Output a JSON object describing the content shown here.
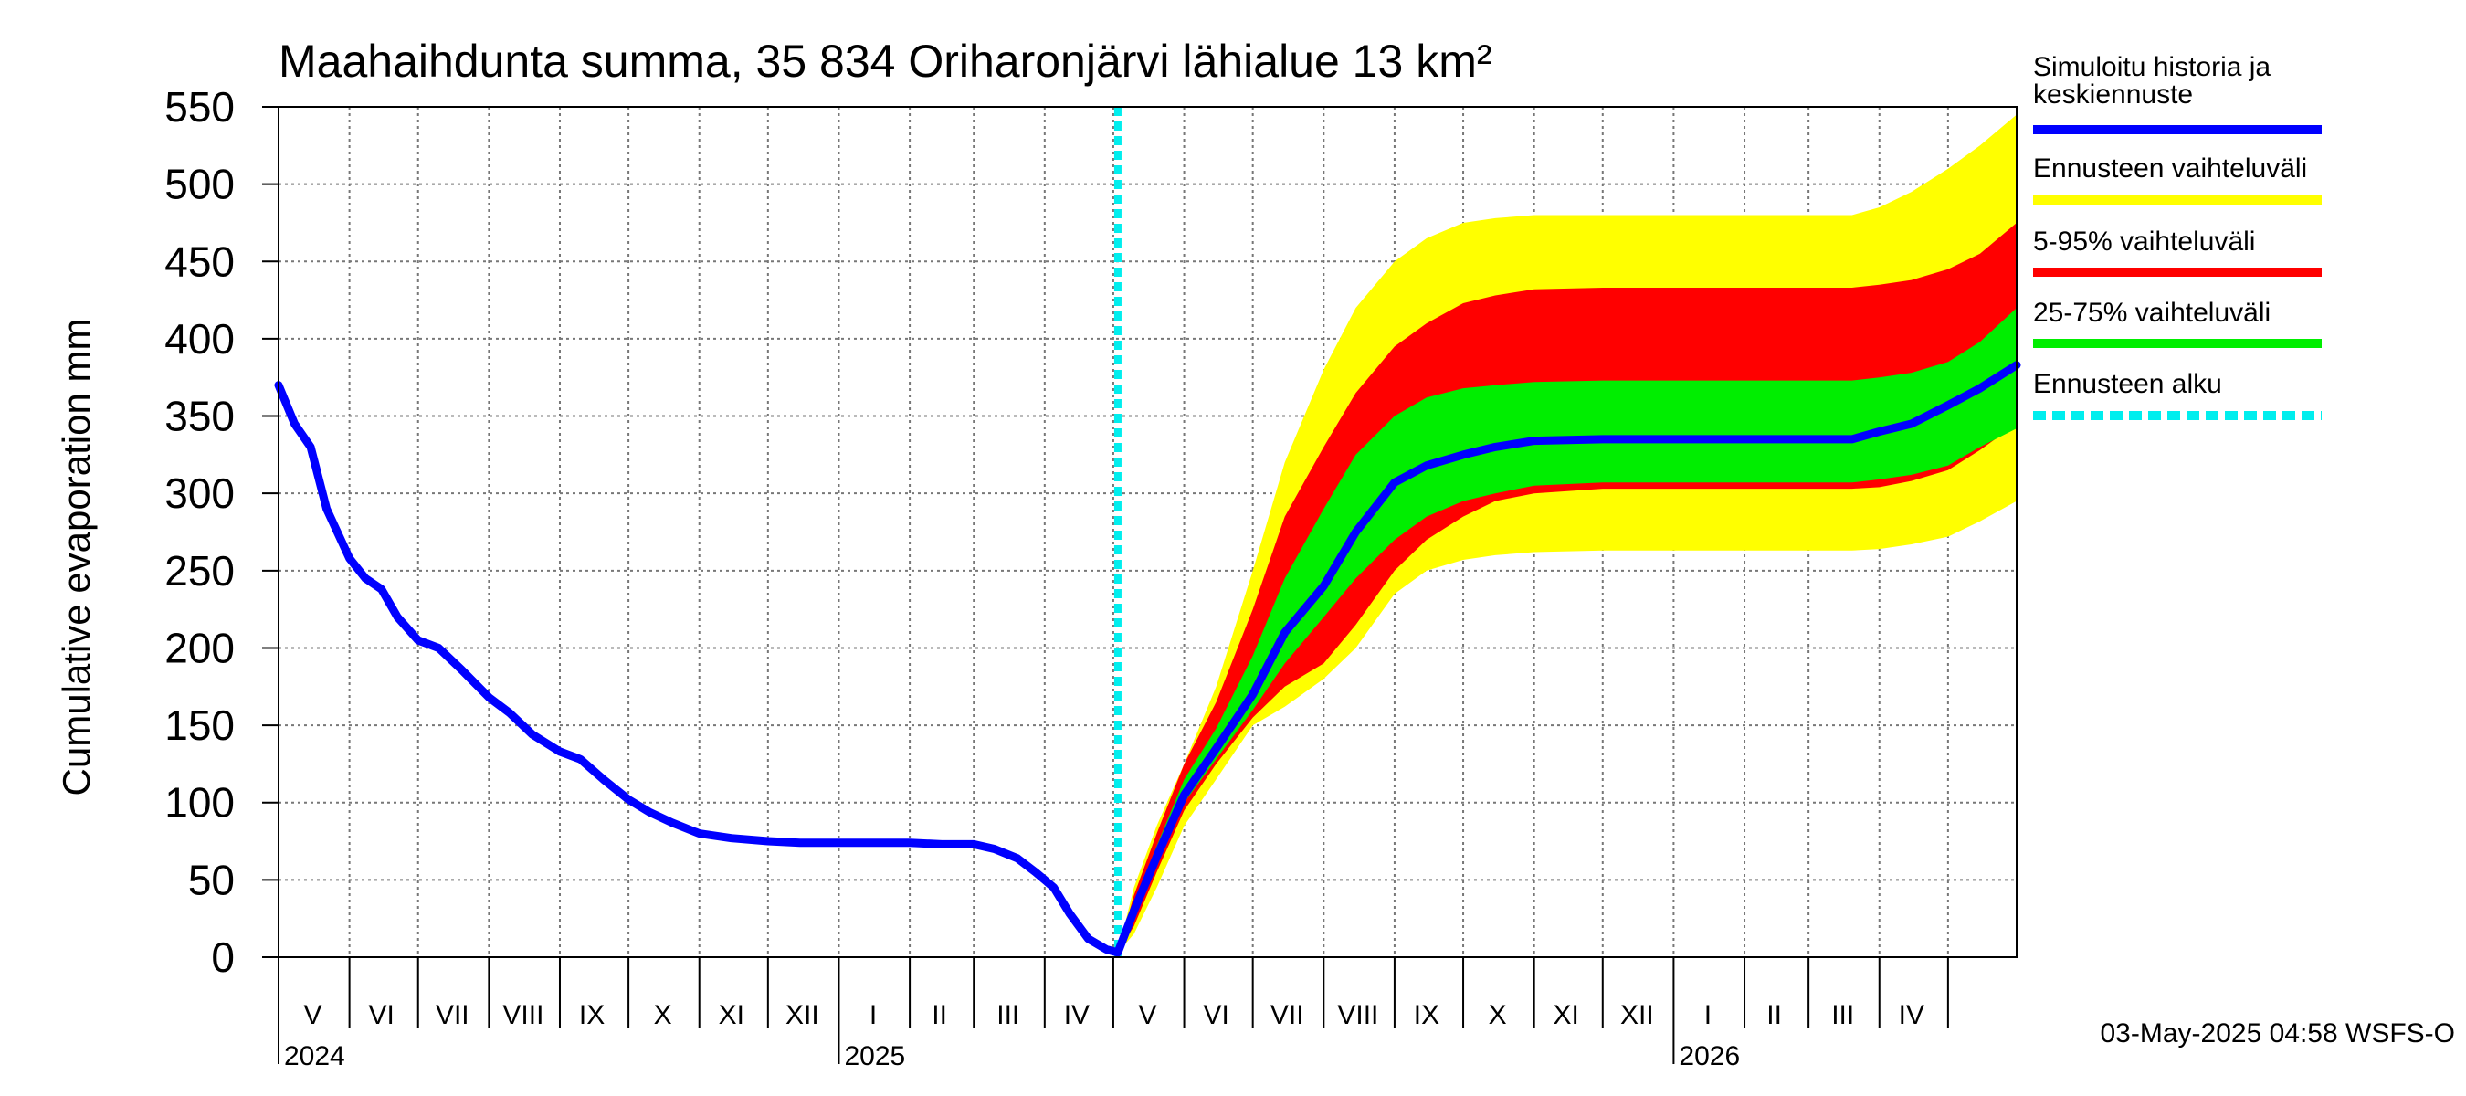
{
  "chart_data": {
    "type": "area",
    "title": "Maahaihdunta summa, 35 834 Oriharonjärvi lähialue 13 km²",
    "ylabel": "Cumulative evaporation   mm",
    "ylim": [
      0,
      550
    ],
    "yticks": [
      0,
      50,
      100,
      150,
      200,
      250,
      300,
      350,
      400,
      450,
      500,
      550
    ],
    "xlim": [
      "2024-05-01",
      "2026-05-31"
    ],
    "grid": true,
    "forecast_start": "2025-05-03",
    "month_labels": [
      {
        "label": "V",
        "date": "2024-05-16"
      },
      {
        "label": "VI",
        "date": "2024-06-15"
      },
      {
        "label": "VII",
        "date": "2024-07-16"
      },
      {
        "label": "VIII",
        "date": "2024-08-16"
      },
      {
        "label": "IX",
        "date": "2024-09-15"
      },
      {
        "label": "X",
        "date": "2024-10-16"
      },
      {
        "label": "XI",
        "date": "2024-11-15"
      },
      {
        "label": "XII",
        "date": "2024-12-16"
      },
      {
        "label": "I",
        "date": "2025-01-16"
      },
      {
        "label": "II",
        "date": "2025-02-14"
      },
      {
        "label": "III",
        "date": "2025-03-16"
      },
      {
        "label": "IV",
        "date": "2025-04-15"
      },
      {
        "label": "V",
        "date": "2025-05-16"
      },
      {
        "label": "VI",
        "date": "2025-06-15"
      },
      {
        "label": "VII",
        "date": "2025-07-16"
      },
      {
        "label": "VIII",
        "date": "2025-08-16"
      },
      {
        "label": "IX",
        "date": "2025-09-15"
      },
      {
        "label": "X",
        "date": "2025-10-16"
      },
      {
        "label": "XI",
        "date": "2025-11-15"
      },
      {
        "label": "XII",
        "date": "2025-12-16"
      },
      {
        "label": "I",
        "date": "2026-01-16"
      },
      {
        "label": "II",
        "date": "2026-02-14"
      },
      {
        "label": "III",
        "date": "2026-03-16"
      },
      {
        "label": "IV",
        "date": "2026-04-15"
      }
    ],
    "year_labels": [
      {
        "label": "2024",
        "date": "2024-05-01"
      },
      {
        "label": "2025",
        "date": "2025-01-01"
      },
      {
        "label": "2026",
        "date": "2026-01-01"
      }
    ],
    "legend": [
      {
        "label": "Simuloitu historia ja keskiennuste",
        "color": "#0000ff"
      },
      {
        "label": "Ennusteen vaihteluväli",
        "color": "#ffff00"
      },
      {
        "label": "5-95% vaihteluväli",
        "color": "#ff0000"
      },
      {
        "label": "25-75% vaihteluväli",
        "color": "#00ee00"
      },
      {
        "label": "Ennusteen alku",
        "color": "#00eeee"
      }
    ],
    "series": [
      {
        "name": "Simuloitu historia ja keskiennuste",
        "color": "#0000ff",
        "x": [
          "2024-05-01",
          "2024-05-08",
          "2024-05-15",
          "2024-05-22",
          "2024-06-01",
          "2024-06-08",
          "2024-06-15",
          "2024-06-22",
          "2024-07-01",
          "2024-07-10",
          "2024-07-20",
          "2024-08-01",
          "2024-08-10",
          "2024-08-20",
          "2024-09-01",
          "2024-09-10",
          "2024-09-20",
          "2024-10-01",
          "2024-10-10",
          "2024-10-20",
          "2024-11-01",
          "2024-11-15",
          "2024-12-01",
          "2024-12-15",
          "2025-01-01",
          "2025-01-15",
          "2025-02-01",
          "2025-02-15",
          "2025-03-01",
          "2025-03-10",
          "2025-03-20",
          "2025-03-28",
          "2025-04-05",
          "2025-04-12",
          "2025-04-20",
          "2025-04-28",
          "2025-05-03",
          "2025-05-10",
          "2025-05-20",
          "2025-06-01",
          "2025-06-15",
          "2025-07-01",
          "2025-07-15",
          "2025-08-01",
          "2025-08-15",
          "2025-09-01",
          "2025-09-15",
          "2025-10-01",
          "2025-10-15",
          "2025-11-01",
          "2025-12-01",
          "2026-01-01",
          "2026-02-01",
          "2026-03-01",
          "2026-03-20",
          "2026-04-01",
          "2026-04-15",
          "2026-05-01",
          "2026-05-15",
          "2026-05-31"
        ],
        "values": [
          370,
          345,
          330,
          290,
          258,
          245,
          238,
          220,
          205,
          200,
          186,
          168,
          158,
          144,
          133,
          128,
          115,
          102,
          94,
          87,
          80,
          77,
          75,
          74,
          74,
          74,
          74,
          73,
          73,
          70,
          64,
          55,
          45,
          28,
          12,
          5,
          3,
          30,
          65,
          105,
          135,
          170,
          210,
          240,
          275,
          307,
          318,
          325,
          330,
          334,
          335,
          335,
          335,
          335,
          335,
          340,
          345,
          357,
          368,
          383
        ]
      },
      {
        "name": "Ennusteen vaihteluväli",
        "color": "#ffff00",
        "x": [
          "2025-05-03",
          "2025-05-10",
          "2025-05-20",
          "2025-06-01",
          "2025-06-15",
          "2025-07-01",
          "2025-07-15",
          "2025-08-01",
          "2025-08-15",
          "2025-09-01",
          "2025-09-15",
          "2025-10-01",
          "2025-10-15",
          "2025-11-01",
          "2025-12-01",
          "2026-01-01",
          "2026-02-01",
          "2026-03-01",
          "2026-03-20",
          "2026-04-01",
          "2026-04-15",
          "2026-05-01",
          "2026-05-15",
          "2026-05-31"
        ],
        "upper": [
          3,
          45,
          85,
          125,
          175,
          250,
          320,
          380,
          420,
          450,
          465,
          475,
          478,
          480,
          480,
          480,
          480,
          480,
          480,
          485,
          495,
          510,
          525,
          545
        ],
        "lower": [
          3,
          15,
          45,
          85,
          115,
          150,
          162,
          180,
          200,
          235,
          250,
          257,
          260,
          262,
          263,
          263,
          263,
          263,
          263,
          264,
          267,
          272,
          282,
          295
        ]
      },
      {
        "name": "5-95% vaihteluväli",
        "color": "#ff0000",
        "x": [
          "2025-05-03",
          "2025-05-10",
          "2025-05-20",
          "2025-06-01",
          "2025-06-15",
          "2025-07-01",
          "2025-07-15",
          "2025-08-01",
          "2025-08-15",
          "2025-09-01",
          "2025-09-15",
          "2025-10-01",
          "2025-10-15",
          "2025-11-01",
          "2025-12-01",
          "2026-01-01",
          "2026-02-01",
          "2026-03-01",
          "2026-03-20",
          "2026-04-01",
          "2026-04-15",
          "2026-05-01",
          "2026-05-15",
          "2026-05-31"
        ],
        "upper": [
          3,
          40,
          80,
          125,
          165,
          225,
          285,
          330,
          365,
          395,
          410,
          423,
          428,
          432,
          433,
          433,
          433,
          433,
          433,
          435,
          438,
          445,
          455,
          475
        ],
        "lower": [
          3,
          20,
          55,
          95,
          125,
          155,
          175,
          190,
          215,
          250,
          270,
          285,
          295,
          300,
          303,
          303,
          303,
          303,
          303,
          304,
          308,
          315,
          328,
          345
        ]
      },
      {
        "name": "25-75% vaihteluväli",
        "color": "#00ee00",
        "x": [
          "2025-05-03",
          "2025-05-10",
          "2025-05-20",
          "2025-06-01",
          "2025-06-15",
          "2025-07-01",
          "2025-07-15",
          "2025-08-01",
          "2025-08-15",
          "2025-09-01",
          "2025-09-15",
          "2025-10-01",
          "2025-10-15",
          "2025-11-01",
          "2025-12-01",
          "2026-01-01",
          "2026-02-01",
          "2026-03-01",
          "2026-03-20",
          "2026-04-01",
          "2026-04-15",
          "2026-05-01",
          "2026-05-15",
          "2026-05-31"
        ],
        "upper": [
          3,
          35,
          72,
          115,
          148,
          195,
          245,
          290,
          325,
          350,
          362,
          368,
          370,
          372,
          373,
          373,
          373,
          373,
          373,
          375,
          378,
          385,
          398,
          420
        ],
        "lower": [
          3,
          25,
          60,
          100,
          128,
          160,
          190,
          220,
          245,
          270,
          285,
          295,
          300,
          305,
          307,
          307,
          307,
          307,
          307,
          309,
          312,
          318,
          330,
          342
        ]
      }
    ]
  },
  "footer": "03-May-2025 04:58 WSFS-O"
}
